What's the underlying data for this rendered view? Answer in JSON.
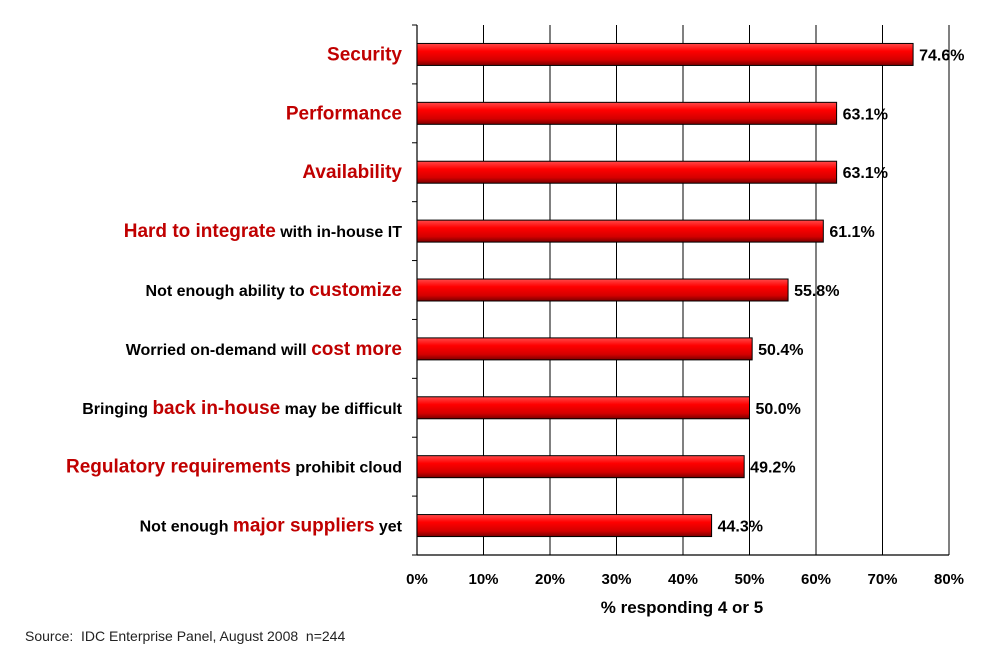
{
  "chart_data": {
    "type": "bar",
    "orientation": "horizontal",
    "categories": [
      [
        {
          "text": "Security",
          "highlight": true
        }
      ],
      [
        {
          "text": "Performance",
          "highlight": true
        }
      ],
      [
        {
          "text": "Availability",
          "highlight": true
        }
      ],
      [
        {
          "text": "Hard to integrate",
          "highlight": true
        },
        {
          "text": " with in-house IT",
          "highlight": false
        }
      ],
      [
        {
          "text": "Not enough ability to ",
          "highlight": false
        },
        {
          "text": "customize",
          "highlight": true
        }
      ],
      [
        {
          "text": "Worried on-demand will ",
          "highlight": false
        },
        {
          "text": "cost more",
          "highlight": true
        }
      ],
      [
        {
          "text": "Bringing ",
          "highlight": false
        },
        {
          "text": "back in-house",
          "highlight": true
        },
        {
          "text": " may be difficult",
          "highlight": false
        }
      ],
      [
        {
          "text": "Regulatory requirements",
          "highlight": true
        },
        {
          "text": " prohibit cloud",
          "highlight": false
        }
      ],
      [
        {
          "text": "Not enough ",
          "highlight": false
        },
        {
          "text": "major suppliers",
          "highlight": true
        },
        {
          "text": " yet",
          "highlight": false
        }
      ]
    ],
    "values": [
      74.6,
      63.1,
      63.1,
      61.1,
      55.8,
      50.4,
      50.0,
      49.2,
      44.3
    ],
    "value_labels": [
      "74.6%",
      "63.1%",
      "63.1%",
      "61.1%",
      "55.8%",
      "50.4%",
      "50.0%",
      "49.2%",
      "44.3%"
    ],
    "xlabel": "% responding 4 or 5",
    "xlim": [
      0,
      80
    ],
    "xticks": [
      "0%",
      "10%",
      "20%",
      "30%",
      "40%",
      "50%",
      "60%",
      "70%",
      "80%"
    ],
    "grid": true,
    "colors": {
      "bar": "#ff0000",
      "bar_edge": "#000000",
      "highlight_text": "#c00000",
      "normal_text": "#000000",
      "grid": "#000000"
    }
  },
  "source_note": "Source:  IDC Enterprise Panel, August 2008  n=244"
}
